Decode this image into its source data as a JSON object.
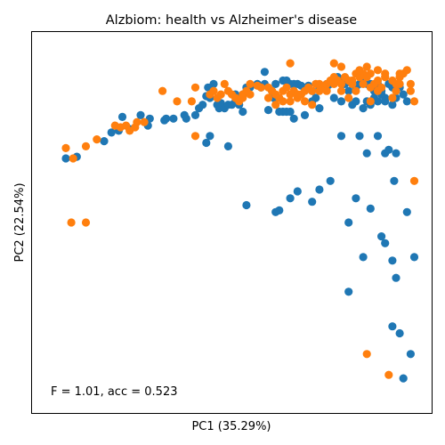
{
  "chart_data": {
    "type": "scatter",
    "title": "Alzbiom: health vs Alzheimer's disease",
    "xlabel": "PC1 (35.29%)",
    "ylabel": "PC2 (22.54%)",
    "annotation": "F = 1.01, acc = 0.523",
    "xlim": [
      0,
      100
    ],
    "ylim": [
      0,
      100
    ],
    "x_ticks_shown": false,
    "y_ticks_shown": false,
    "grid": false,
    "legend": "none",
    "colors": {
      "series_a": "#1f77b4",
      "series_b": "#ff7f0e"
    },
    "series": [
      {
        "color": "#1f77b4",
        "points": [
          [
            4.5,
            68.5
          ],
          [
            7.5,
            69
          ],
          [
            15,
            73.5
          ],
          [
            17,
            76
          ],
          [
            19,
            76.5
          ],
          [
            20,
            80.5
          ],
          [
            22,
            77
          ],
          [
            25,
            81
          ],
          [
            27,
            78
          ],
          [
            27.5,
            80
          ],
          [
            31.5,
            79.5
          ],
          [
            32,
            80
          ],
          [
            34,
            80
          ],
          [
            37,
            81
          ],
          [
            37.5,
            80
          ],
          [
            40,
            81
          ],
          [
            41,
            83
          ],
          [
            42,
            84
          ],
          [
            43,
            86.5
          ],
          [
            43.5,
            89
          ],
          [
            45,
            90
          ],
          [
            44,
            86
          ],
          [
            46,
            84
          ],
          [
            46.5,
            83
          ],
          [
            47,
            84.5
          ],
          [
            48,
            83
          ],
          [
            49,
            84
          ],
          [
            50,
            84
          ],
          [
            51,
            85
          ],
          [
            51,
            87
          ],
          [
            52,
            84
          ],
          [
            53,
            87
          ],
          [
            54,
            89
          ],
          [
            43,
            73
          ],
          [
            44,
            75
          ],
          [
            49,
            72
          ],
          [
            53,
            82
          ],
          [
            55,
            89
          ],
          [
            57,
            90
          ],
          [
            58,
            89
          ],
          [
            59,
            90
          ],
          [
            61,
            88
          ],
          [
            61.5,
            86
          ],
          [
            62,
            90
          ],
          [
            64,
            91
          ],
          [
            65,
            91
          ],
          [
            66,
            90
          ],
          [
            67,
            90
          ],
          [
            68,
            90
          ],
          [
            69,
            89.5
          ],
          [
            71,
            89.5
          ],
          [
            72,
            88
          ],
          [
            73,
            86
          ],
          [
            74,
            89
          ],
          [
            75,
            89
          ],
          [
            76,
            90
          ],
          [
            77,
            90
          ],
          [
            78,
            91
          ],
          [
            79,
            92
          ],
          [
            80,
            91
          ],
          [
            81,
            90
          ],
          [
            82,
            88
          ],
          [
            83,
            90
          ],
          [
            84,
            89
          ],
          [
            85,
            90
          ],
          [
            86,
            91
          ],
          [
            87,
            90
          ],
          [
            88,
            90
          ],
          [
            89,
            88
          ],
          [
            90,
            90
          ],
          [
            91,
            88
          ],
          [
            92,
            86
          ],
          [
            93,
            90
          ],
          [
            94,
            89
          ],
          [
            95,
            89
          ],
          [
            96,
            89
          ],
          [
            97,
            87
          ],
          [
            98,
            85
          ],
          [
            59,
            93.5
          ],
          [
            60,
            82.5
          ],
          [
            63,
            82
          ],
          [
            64,
            82
          ],
          [
            65,
            82
          ],
          [
            66,
            82
          ],
          [
            67,
            80
          ],
          [
            70,
            81
          ],
          [
            72,
            85
          ],
          [
            74,
            83
          ],
          [
            76,
            89
          ],
          [
            78,
            86
          ],
          [
            80,
            85
          ],
          [
            83,
            84
          ],
          [
            84,
            85
          ],
          [
            86,
            83
          ],
          [
            87,
            85
          ],
          [
            88,
            84
          ],
          [
            89,
            86
          ],
          [
            90,
            85
          ],
          [
            91,
            87
          ],
          [
            92,
            85
          ],
          [
            94,
            84
          ],
          [
            95,
            86
          ],
          [
            54,
            55
          ],
          [
            62,
            53
          ],
          [
            63,
            53.5
          ],
          [
            66,
            57
          ],
          [
            68,
            59
          ],
          [
            72,
            56
          ],
          [
            74,
            59.5
          ],
          [
            77,
            62
          ],
          [
            80,
            75
          ],
          [
            85,
            75
          ],
          [
            87,
            70
          ],
          [
            90,
            75
          ],
          [
            92,
            70
          ],
          [
            93,
            71
          ],
          [
            95,
            70
          ],
          [
            94.5,
            62
          ],
          [
            88,
            54
          ],
          [
            86,
            40
          ],
          [
            94,
            39
          ],
          [
            95,
            34
          ],
          [
            100,
            40
          ],
          [
            82,
            30
          ],
          [
            82,
            50
          ],
          [
            84,
            57
          ],
          [
            92,
            44
          ],
          [
            94,
            20
          ],
          [
            91,
            46
          ],
          [
            96,
            18
          ],
          [
            97,
            5
          ],
          [
            99,
            12
          ],
          [
            98,
            53
          ]
        ]
      },
      {
        "color": "#ff7f0e",
        "points": [
          [
            4.5,
            71.5
          ],
          [
            6.5,
            68.5
          ],
          [
            10,
            72
          ],
          [
            13,
            74
          ],
          [
            18,
            78
          ],
          [
            19.5,
            77.5
          ],
          [
            21,
            78
          ],
          [
            22,
            76.5
          ],
          [
            23.5,
            77.5
          ],
          [
            24,
            79
          ],
          [
            26,
            79
          ],
          [
            31,
            88
          ],
          [
            35,
            85
          ],
          [
            39,
            85
          ],
          [
            40,
            89
          ],
          [
            44,
            87
          ],
          [
            45,
            88
          ],
          [
            46,
            86
          ],
          [
            47,
            87
          ],
          [
            48,
            90
          ],
          [
            49,
            88
          ],
          [
            50,
            87
          ],
          [
            51,
            86
          ],
          [
            52,
            85
          ],
          [
            53,
            87
          ],
          [
            54,
            88
          ],
          [
            55,
            90
          ],
          [
            57,
            89.5
          ],
          [
            58,
            89
          ],
          [
            60,
            89
          ],
          [
            61,
            88
          ],
          [
            62,
            87
          ],
          [
            63,
            86
          ],
          [
            64,
            88
          ],
          [
            65,
            89
          ],
          [
            66,
            87
          ],
          [
            67,
            88
          ],
          [
            68,
            86
          ],
          [
            69,
            87
          ],
          [
            70,
            88
          ],
          [
            71,
            89
          ],
          [
            72,
            88
          ],
          [
            73,
            90
          ],
          [
            74,
            90
          ],
          [
            75,
            89
          ],
          [
            76,
            90
          ],
          [
            77,
            91
          ],
          [
            78,
            92
          ],
          [
            79,
            91
          ],
          [
            80,
            90
          ],
          [
            81,
            92
          ],
          [
            82,
            91
          ],
          [
            83,
            90
          ],
          [
            84,
            93
          ],
          [
            85,
            92
          ],
          [
            86,
            93
          ],
          [
            87,
            95
          ],
          [
            88,
            93
          ],
          [
            89,
            90
          ],
          [
            90,
            91
          ],
          [
            91,
            89
          ],
          [
            92,
            92
          ],
          [
            94,
            91
          ],
          [
            95,
            90
          ],
          [
            96,
            92
          ],
          [
            97,
            93
          ],
          [
            98,
            94
          ],
          [
            66,
            96
          ],
          [
            78,
            96
          ],
          [
            80,
            95
          ],
          [
            83,
            91
          ],
          [
            85,
            94
          ],
          [
            87,
            92
          ],
          [
            88,
            85
          ],
          [
            90,
            94
          ],
          [
            92,
            93
          ],
          [
            96,
            93
          ],
          [
            99,
            90
          ],
          [
            100,
            85
          ],
          [
            10,
            50
          ],
          [
            6,
            50
          ],
          [
            40,
            75
          ],
          [
            53,
            86
          ],
          [
            55,
            87
          ],
          [
            60,
            86
          ],
          [
            62,
            84
          ],
          [
            64,
            85
          ],
          [
            66,
            85
          ],
          [
            68,
            87
          ],
          [
            70,
            85
          ],
          [
            72,
            84
          ],
          [
            74,
            88
          ],
          [
            76,
            88
          ],
          [
            78,
            90
          ],
          [
            80,
            88
          ],
          [
            82,
            86
          ],
          [
            84,
            88
          ],
          [
            86,
            90
          ],
          [
            88,
            89
          ],
          [
            90,
            88
          ],
          [
            94,
            86
          ],
          [
            95,
            88
          ],
          [
            99,
            88
          ],
          [
            96,
            90
          ],
          [
            100,
            62
          ],
          [
            87,
            12
          ],
          [
            93,
            6
          ]
        ]
      }
    ]
  }
}
